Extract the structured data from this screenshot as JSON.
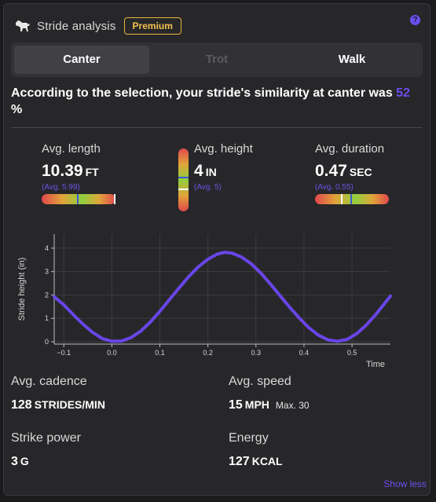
{
  "header": {
    "title": "Stride analysis",
    "badge": "Premium",
    "help": "?"
  },
  "tabs": [
    {
      "label": "Canter",
      "state": "active"
    },
    {
      "label": "Trot",
      "state": "disabled"
    },
    {
      "label": "Walk",
      "state": "normal"
    }
  ],
  "summary": {
    "text": "According to the selection, your stride's similarity at canter was ",
    "percent": "52",
    "percent_suffix": " %"
  },
  "metrics": {
    "length": {
      "label": "Avg. length",
      "value": "10.39",
      "unit": "FT",
      "avg": "(Avg. 5.99)"
    },
    "height": {
      "label": "Avg. height",
      "value": "4",
      "unit": "IN",
      "avg": "(Avg. 5)"
    },
    "duration": {
      "label": "Avg. duration",
      "value": "0.47",
      "unit": "SEC",
      "avg": "(Avg. 0.55)"
    }
  },
  "chart_data": {
    "type": "line",
    "xlabel": "Time",
    "ylabel": "Stride height (in)",
    "xlim": [
      -0.12,
      0.58
    ],
    "ylim": [
      -0.1,
      4.6
    ],
    "xticks": [
      -0.1,
      0,
      0.1,
      0.2,
      0.3,
      0.4,
      0.5
    ],
    "xtick_labels": [
      "−0.1",
      "0.0",
      "0.1",
      "0.2",
      "0.3",
      "0.4",
      "0.5"
    ],
    "yticks": [
      0,
      1,
      2,
      3,
      4
    ],
    "color": "#6a45e8",
    "series": [
      {
        "x": [
          -0.12,
          -0.1,
          -0.08,
          -0.06,
          -0.04,
          -0.02,
          0.0,
          0.02,
          0.04,
          0.06,
          0.08,
          0.1,
          0.12,
          0.14,
          0.16,
          0.18,
          0.2,
          0.22,
          0.235,
          0.25,
          0.27,
          0.29,
          0.31,
          0.33,
          0.35,
          0.37,
          0.39,
          0.41,
          0.43,
          0.45,
          0.47,
          0.49,
          0.51,
          0.53,
          0.55,
          0.58
        ],
        "y": [
          1.92,
          1.58,
          1.15,
          0.75,
          0.4,
          0.14,
          0.02,
          0.03,
          0.18,
          0.45,
          0.84,
          1.3,
          1.8,
          2.3,
          2.78,
          3.2,
          3.53,
          3.75,
          3.82,
          3.79,
          3.62,
          3.33,
          2.94,
          2.47,
          1.97,
          1.48,
          1.02,
          0.6,
          0.28,
          0.08,
          0.02,
          0.1,
          0.35,
          0.72,
          1.18,
          1.95
        ]
      }
    ]
  },
  "stats": {
    "cadence": {
      "label": "Avg. cadence",
      "value": "128",
      "unit": "STRIDES/MIN"
    },
    "speed": {
      "label": "Avg. speed",
      "value": "15",
      "unit": "MPH",
      "max": "Max. 30"
    },
    "power": {
      "label": "Strike power",
      "value": "3",
      "unit": "G"
    },
    "energy": {
      "label": "Energy",
      "value": "127",
      "unit": "KCAL"
    }
  },
  "footer": {
    "show_less": "Show less"
  }
}
